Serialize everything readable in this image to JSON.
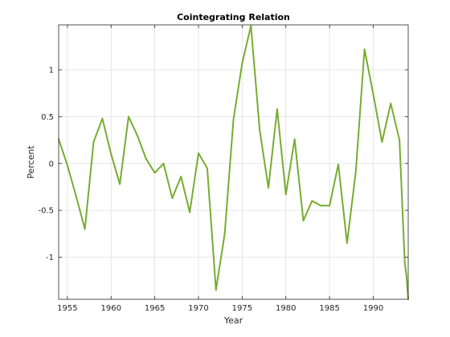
{
  "chart_data": {
    "type": "line",
    "title": "Cointegrating Relation",
    "xlabel": "Year",
    "ylabel": "Percent",
    "xlim": [
      1954,
      1994
    ],
    "ylim": [
      -1.45,
      1.48
    ],
    "grid": true,
    "x_ticks": [
      1955,
      1960,
      1965,
      1970,
      1975,
      1980,
      1985,
      1990
    ],
    "x_tick_labels": [
      "1955",
      "1960",
      "1965",
      "1970",
      "1975",
      "1980",
      "1985",
      "1990"
    ],
    "y_ticks": [
      -1,
      -0.5,
      0,
      0.5,
      1
    ],
    "y_tick_labels": [
      "-1",
      "-0.5",
      "0",
      "0.5",
      "1"
    ],
    "series": [
      {
        "color": "#77ac30",
        "x": [
          1954,
          1955,
          1956,
          1957,
          1958,
          1959,
          1960,
          1961,
          1962,
          1963,
          1964,
          1965,
          1966,
          1967,
          1968,
          1969,
          1970,
          1971,
          1972,
          1973,
          1974,
          1975,
          1976,
          1977,
          1978,
          1979,
          1980,
          1981,
          1982,
          1983,
          1984,
          1985,
          1986,
          1987,
          1988,
          1989,
          1990,
          1991,
          1992,
          1993,
          1993.6,
          1993.8,
          1994
        ],
        "values": [
          0.26,
          -0.02,
          -0.35,
          -0.7,
          0.23,
          0.48,
          0.1,
          -0.22,
          0.5,
          0.3,
          0.05,
          -0.1,
          0.0,
          -0.37,
          -0.14,
          -0.52,
          0.11,
          -0.05,
          -1.35,
          -0.75,
          0.47,
          1.07,
          1.47,
          0.36,
          -0.26,
          0.58,
          -0.33,
          0.26,
          -0.61,
          -0.4,
          -0.45,
          -0.45,
          -0.01,
          -0.85,
          -0.09,
          1.22,
          0.74,
          0.23,
          0.64,
          0.25,
          -1.05,
          -1.2,
          -1.45
        ]
      }
    ]
  }
}
